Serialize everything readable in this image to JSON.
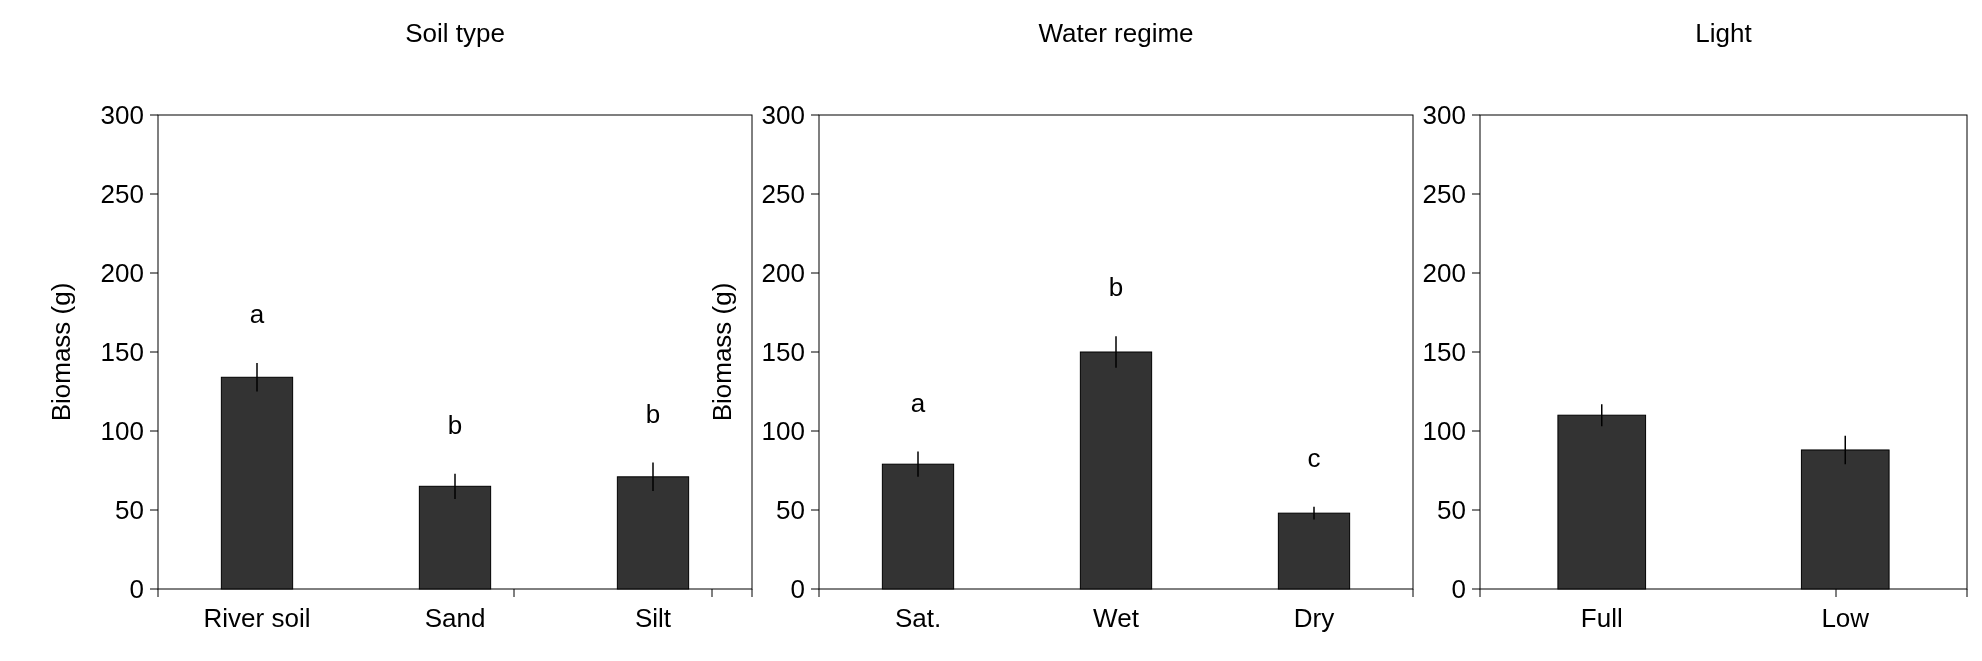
{
  "chart_data": [
    {
      "type": "bar",
      "title": "Soil type",
      "ylabel": "Biomass (g)",
      "categories": [
        "River soil",
        "Sand",
        "Silt"
      ],
      "values": [
        134,
        65,
        71
      ],
      "errors": [
        9,
        8,
        9
      ],
      "color": "#333333",
      "ylim": [
        0,
        300
      ],
      "yticks": [
        0,
        50,
        100,
        150,
        200,
        250,
        300
      ],
      "grid": false,
      "annotations": [
        "a",
        "b",
        "b"
      ]
    },
    {
      "type": "bar",
      "title": "Water regime",
      "ylabel": "Biomass (g)",
      "categories": [
        "Sat.",
        "Wet",
        "Dry"
      ],
      "values": [
        79,
        150,
        48
      ],
      "errors": [
        8,
        10,
        4
      ],
      "color": "#333333",
      "ylim": [
        0,
        300
      ],
      "yticks": [
        0,
        50,
        100,
        150,
        200,
        250,
        300
      ],
      "grid": false,
      "annotations": [
        "a",
        "b",
        "c"
      ]
    },
    {
      "type": "bar",
      "title": "Light",
      "categories": [
        "Full",
        "Low"
      ],
      "values": [
        110,
        88
      ],
      "errors": [
        7,
        9
      ],
      "color": "#333333",
      "ylim": [
        0,
        300
      ],
      "yticks": [
        0,
        50,
        100,
        150,
        200,
        250,
        300
      ],
      "grid": false
    }
  ]
}
